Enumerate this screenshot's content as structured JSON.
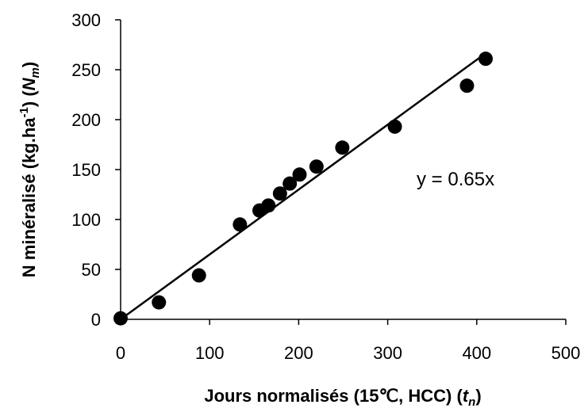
{
  "chart_data": {
    "type": "scatter",
    "xlabel": {
      "main": "Jours normalisés (15℃, HCC) (",
      "var": "t",
      "sub": "n",
      "close": ")"
    },
    "ylabel": {
      "main": "N minéralisé (kg.ha",
      "sup": "-1",
      "mid": ") (",
      "var": "N",
      "sub": "m",
      "close": ")"
    },
    "xlim": [
      0,
      500
    ],
    "ylim": [
      0,
      300
    ],
    "x_ticks": [
      0,
      100,
      200,
      300,
      400,
      500
    ],
    "y_ticks": [
      0,
      50,
      100,
      150,
      200,
      250,
      300
    ],
    "grid": false,
    "series": [
      {
        "points": [
          {
            "x": 0,
            "y": 1
          },
          {
            "x": 43,
            "y": 17
          },
          {
            "x": 88,
            "y": 44
          },
          {
            "x": 134,
            "y": 95
          },
          {
            "x": 156,
            "y": 109
          },
          {
            "x": 166,
            "y": 114
          },
          {
            "x": 179,
            "y": 126
          },
          {
            "x": 190,
            "y": 136
          },
          {
            "x": 201,
            "y": 145
          },
          {
            "x": 220,
            "y": 153
          },
          {
            "x": 249,
            "y": 172
          },
          {
            "x": 308,
            "y": 193
          },
          {
            "x": 389,
            "y": 234
          },
          {
            "x": 410,
            "y": 261
          }
        ]
      }
    ],
    "trendline": {
      "slope": 0.65,
      "x_range": [
        0,
        410
      ],
      "label": "y = 0.65x"
    }
  }
}
